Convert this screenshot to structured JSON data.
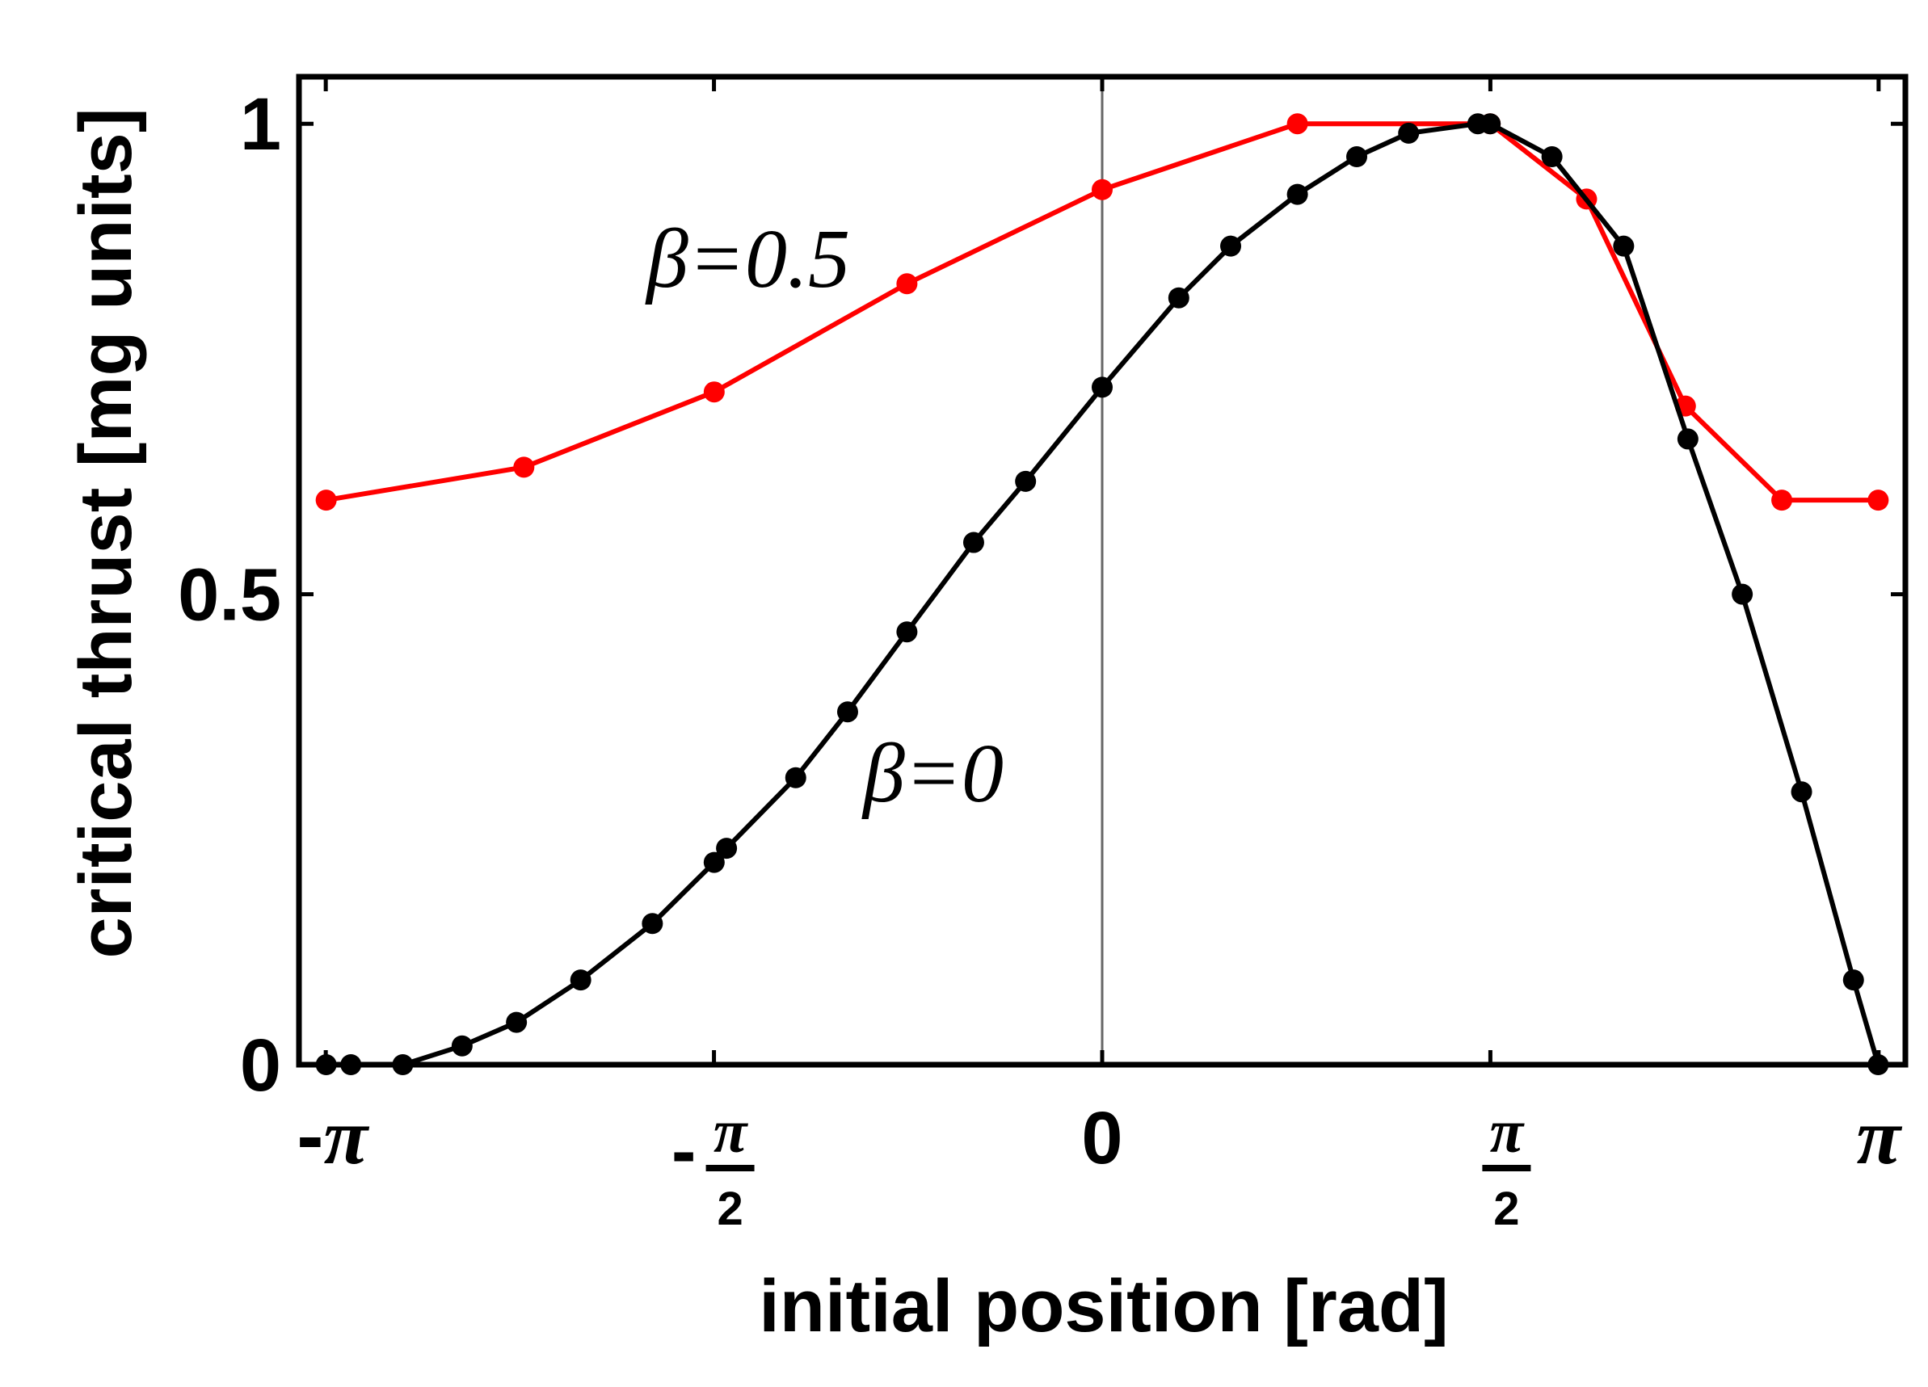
{
  "chart_data": {
    "type": "line",
    "title": "",
    "xlabel": "initial position [rad]",
    "ylabel": "critical thrust [mg units]",
    "xlim": [
      -3.25,
      3.25
    ],
    "ylim": [
      0,
      1.05
    ],
    "grid": false,
    "y_ticks": [
      {
        "value": 0,
        "label": "0"
      },
      {
        "value": 0.5,
        "label": "0.5"
      },
      {
        "value": 1,
        "label": "1"
      }
    ],
    "x_ticks": [
      {
        "value": -3.14159,
        "sign": "-",
        "num": "π",
        "den": ""
      },
      {
        "value": -1.5708,
        "sign": "-",
        "num": "π",
        "den": "2"
      },
      {
        "value": 0,
        "sign": "",
        "num": "0",
        "den": ""
      },
      {
        "value": 1.5708,
        "sign": "",
        "num": "π",
        "den": "2"
      },
      {
        "value": 3.14159,
        "sign": "",
        "num": "π",
        "den": ""
      }
    ],
    "vertical_reference_line": 0,
    "series": [
      {
        "annotation": "β=0.5",
        "color": "#ff0000",
        "x": [
          -3.14,
          -2.34,
          -1.57,
          -0.79,
          0.0,
          0.79,
          1.57,
          1.96,
          2.36,
          2.75,
          3.14
        ],
        "y": [
          0.6,
          0.635,
          0.715,
          0.83,
          0.93,
          1.0,
          1.0,
          0.92,
          0.7,
          0.6,
          0.6
        ]
      },
      {
        "annotation": "β=0",
        "color": "#000000",
        "x": [
          -3.14,
          -3.04,
          -2.83,
          -2.59,
          -2.37,
          -2.11,
          -1.82,
          -1.57,
          -1.52,
          -1.24,
          -1.03,
          -0.79,
          -0.52,
          -0.31,
          0.0,
          0.31,
          0.52,
          0.79,
          1.03,
          1.24,
          1.52,
          1.57,
          1.82,
          2.11,
          2.37,
          2.59,
          2.83,
          3.04,
          3.14
        ],
        "y": [
          0.0,
          0.0,
          0.0,
          0.02,
          0.045,
          0.09,
          0.15,
          0.215,
          0.23,
          0.305,
          0.375,
          0.46,
          0.555,
          0.62,
          0.72,
          0.815,
          0.87,
          0.925,
          0.965,
          0.99,
          1.0,
          1.0,
          0.965,
          0.87,
          0.665,
          0.5,
          0.29,
          0.09,
          0.0
        ]
      }
    ]
  }
}
